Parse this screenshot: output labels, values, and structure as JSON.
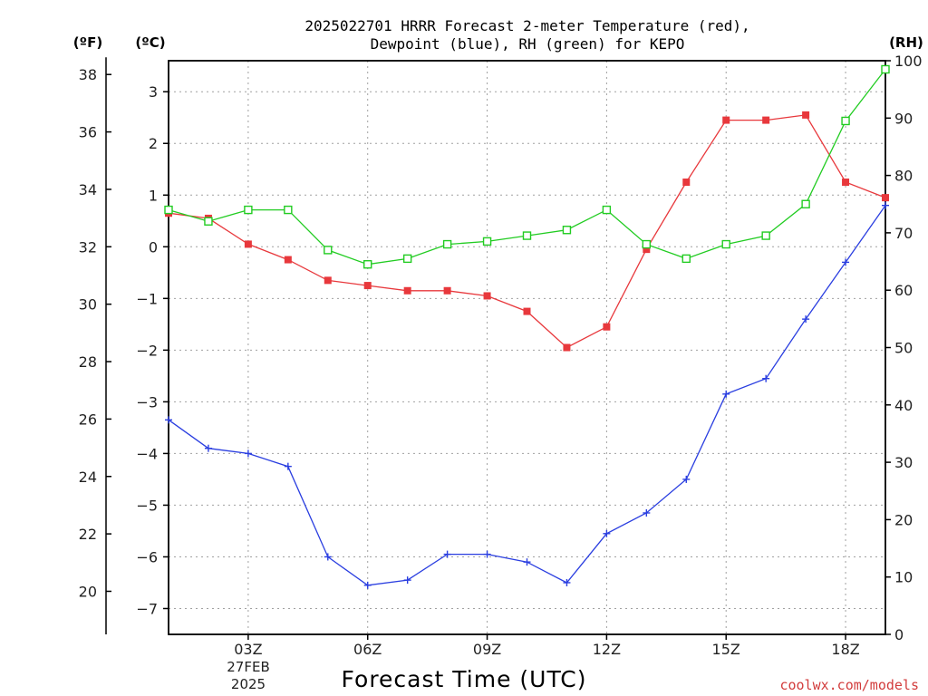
{
  "title_line1": "2025022701 HRRR Forecast 2-meter Temperature (red),",
  "title_line2": "Dewpoint (blue), RH (green) for KEPO",
  "unit_f": "(ºF)",
  "unit_c": "(ºC)",
  "unit_rh": "(RH)",
  "xlabel": "Forecast Time (UTC)",
  "date_line1": "27FEB",
  "date_line2": "2025",
  "credit": "coolwx.com/models",
  "colors": {
    "temperature": "#e8383c",
    "dewpoint": "#2a3ee0",
    "rh": "#22cc22",
    "grid": "#a0a0a0"
  },
  "chart_data": {
    "type": "line",
    "x": [
      1,
      2,
      3,
      4,
      5,
      6,
      7,
      8,
      9,
      10,
      11,
      12,
      13,
      14,
      15,
      16,
      17,
      18,
      19
    ],
    "xticks": [
      {
        "x": 3,
        "label": "03Z"
      },
      {
        "x": 6,
        "label": "06Z"
      },
      {
        "x": 9,
        "label": "09Z"
      },
      {
        "x": 12,
        "label": "12Z"
      },
      {
        "x": 15,
        "label": "15Z"
      },
      {
        "x": 18,
        "label": "18Z"
      }
    ],
    "xlim": [
      1,
      19
    ],
    "celsius_ticks": [
      "3",
      "2",
      "1",
      "0",
      "−1",
      "−2",
      "−3",
      "−4",
      "−5",
      "−6",
      "−7"
    ],
    "fahrenheit_ticks": [
      "38",
      "36",
      "34",
      "32",
      "30",
      "28",
      "26",
      "24",
      "22",
      "20"
    ],
    "rh_ticks": [
      "100",
      "90",
      "80",
      "70",
      "60",
      "50",
      "40",
      "30",
      "20",
      "10",
      "0"
    ],
    "ylim_celsius": [
      -7.5,
      3.6
    ],
    "ylim_rh": [
      0,
      100
    ],
    "grid": true,
    "series": [
      {
        "key": "temperature",
        "axis": "celsius",
        "marker": "filled-square",
        "values": [
          0.65,
          0.55,
          0.05,
          -0.25,
          -0.65,
          -0.75,
          -0.85,
          -0.85,
          -0.95,
          -1.25,
          -1.95,
          -1.55,
          -0.05,
          1.25,
          2.45,
          2.45,
          2.55,
          1.25,
          0.95
        ]
      },
      {
        "key": "dewpoint",
        "axis": "celsius",
        "marker": "plus",
        "values": [
          -3.35,
          -3.9,
          -4.0,
          -4.25,
          -6.0,
          -6.55,
          -6.45,
          -5.95,
          -5.95,
          -6.1,
          -6.5,
          -5.55,
          -5.15,
          -4.5,
          -2.85,
          -2.55,
          -1.4,
          -0.3,
          0.8
        ]
      },
      {
        "key": "rh",
        "axis": "rh",
        "marker": "open-square",
        "values": [
          74,
          72,
          74,
          74,
          67,
          64.5,
          65.5,
          68,
          68.5,
          69.5,
          70.5,
          74,
          68,
          65.5,
          68,
          69.5,
          75,
          89.5,
          98.5
        ]
      }
    ]
  }
}
